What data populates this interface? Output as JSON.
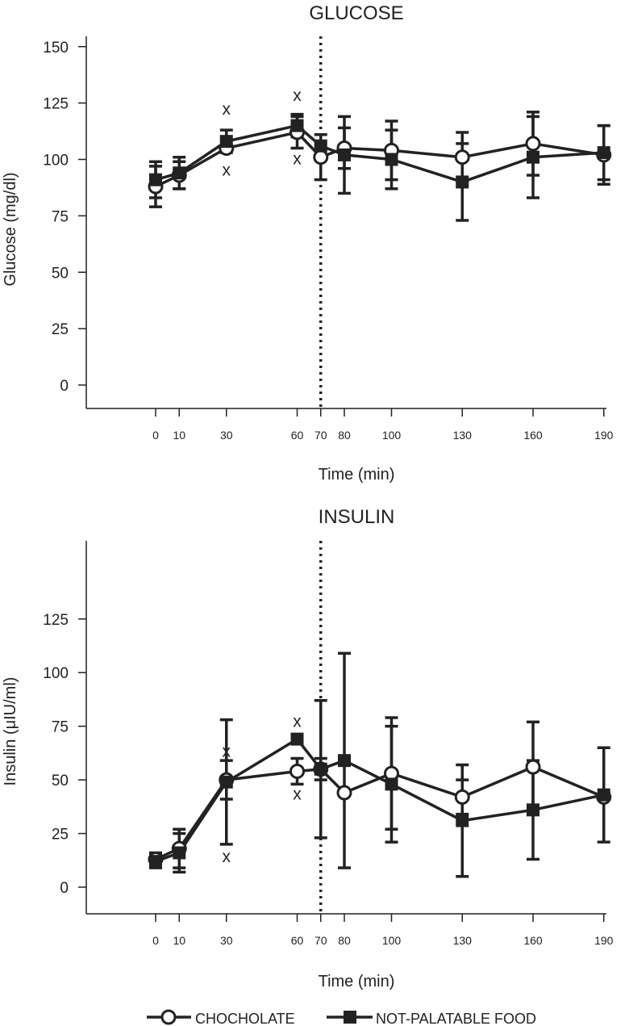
{
  "legend": {
    "items": [
      {
        "label": "CHOCHOLATE",
        "marker": "open-circle"
      },
      {
        "label": "NOT-PALATABLE FOOD",
        "marker": "filled-square"
      }
    ],
    "placement": "bottom-center"
  },
  "chart_data": [
    {
      "type": "line",
      "title": "GLUCOSE",
      "xlabel": "Time (min)",
      "ylabel": "Glucose (mg/dl)",
      "x": [
        0,
        10,
        30,
        60,
        70,
        80,
        100,
        130,
        160,
        190
      ],
      "x_tick_labels": [
        "0",
        "10",
        "30",
        "60",
        "70",
        "80",
        "100",
        "130",
        "160",
        "190"
      ],
      "xlim": [
        -30,
        195
      ],
      "ylim": [
        -10,
        150
      ],
      "y_ticks": [
        0,
        25,
        50,
        75,
        100,
        125,
        150
      ],
      "grid": false,
      "vertical_reference_line": {
        "x": 70,
        "style": "dotted"
      },
      "series": [
        {
          "name": "CHOCHOLATE",
          "marker": "open-circle",
          "values": [
            88,
            93,
            105,
            112,
            101,
            105,
            104,
            101,
            107,
            102
          ],
          "error": [
            9,
            6,
            0,
            7,
            10,
            9,
            13,
            11,
            14,
            13
          ]
        },
        {
          "name": "NOT-PALATABLE FOOD",
          "marker": "filled-square",
          "values": [
            91,
            94,
            108,
            115,
            106,
            102,
            100,
            90,
            101,
            103
          ],
          "error": [
            8,
            7,
            5,
            5,
            0,
            17,
            13,
            17,
            18,
            12
          ]
        }
      ],
      "annotations": [
        {
          "text": "x",
          "x": 30,
          "y": 122
        },
        {
          "text": "x",
          "x": 30,
          "y": 95
        },
        {
          "text": "x",
          "x": 60,
          "y": 128
        },
        {
          "text": "x",
          "x": 60,
          "y": 100
        }
      ]
    },
    {
      "type": "line",
      "title": "INSULIN",
      "xlabel": "Time (min)",
      "ylabel": "Insulin (μIU/ml)",
      "x": [
        0,
        10,
        30,
        60,
        70,
        80,
        100,
        130,
        160,
        190
      ],
      "x_tick_labels": [
        "0",
        "10",
        "30",
        "60",
        "70",
        "80",
        "100",
        "130",
        "160",
        "190"
      ],
      "xlim": [
        -30,
        195
      ],
      "ylim": [
        -10,
        125
      ],
      "y_ticks": [
        0,
        25,
        50,
        75,
        100,
        125
      ],
      "grid": false,
      "vertical_reference_line": {
        "x": 70,
        "style": "dotted"
      },
      "series": [
        {
          "name": "CHOCHOLATE",
          "marker": "open-circle",
          "values": [
            13,
            18,
            50,
            54,
            55,
            44,
            53,
            42,
            56,
            42
          ],
          "error": [
            3,
            9,
            9,
            6,
            5,
            0,
            26,
            8,
            21,
            0
          ]
        },
        {
          "name": "NOT-PALATABLE FOOD",
          "marker": "filled-square",
          "values": [
            12,
            16,
            49,
            69,
            55,
            59,
            48,
            31,
            36,
            43
          ],
          "error": [
            3,
            9,
            29,
            0,
            32,
            50,
            27,
            26,
            23,
            22
          ]
        }
      ],
      "annotations": [
        {
          "text": "x",
          "x": 30,
          "y": 63
        },
        {
          "text": "x",
          "x": 30,
          "y": 14
        },
        {
          "text": "x",
          "x": 60,
          "y": 77
        },
        {
          "text": "x",
          "x": 60,
          "y": 43
        }
      ]
    }
  ]
}
